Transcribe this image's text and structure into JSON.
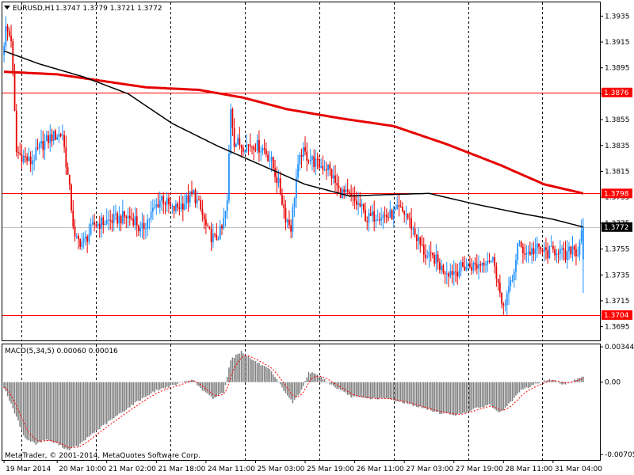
{
  "chart_data": {
    "type": "candlestick",
    "symbol_label": "EURUSD,H1",
    "ohlc_header": "1.3747 1.3779 1.3721 1.3772",
    "ohlc": {
      "open": 1.3747,
      "high": 1.3779,
      "low": 1.3721,
      "close": 1.3772
    },
    "price_axis": {
      "ylim": [
        1.3685,
        1.3945
      ],
      "ticks": [
        "1.3935",
        "1.3915",
        "1.3895",
        "1.3875",
        "1.3855",
        "1.3835",
        "1.3815",
        "1.3795",
        "1.3775",
        "1.3755",
        "1.3735",
        "1.3715",
        "1.3695"
      ]
    },
    "price_path": [
      [
        0,
        1.3905
      ],
      [
        2,
        1.3925
      ],
      [
        5,
        1.3918
      ],
      [
        8,
        1.383
      ],
      [
        12,
        1.3826
      ],
      [
        16,
        1.3822
      ],
      [
        22,
        1.3835
      ],
      [
        28,
        1.3842
      ],
      [
        34,
        1.3844
      ],
      [
        38,
        1.38
      ],
      [
        41,
        1.3762
      ],
      [
        46,
        1.376
      ],
      [
        52,
        1.3774
      ],
      [
        58,
        1.3776
      ],
      [
        64,
        1.3778
      ],
      [
        70,
        1.378
      ],
      [
        75,
        1.3778
      ],
      [
        78,
        1.3768
      ],
      [
        84,
        1.3782
      ],
      [
        90,
        1.3795
      ],
      [
        96,
        1.3785
      ],
      [
        102,
        1.379
      ],
      [
        108,
        1.3798
      ],
      [
        112,
        1.3785
      ],
      [
        116,
        1.3768
      ],
      [
        120,
        1.3762
      ],
      [
        124,
        1.377
      ],
      [
        127,
        1.379
      ],
      [
        129,
        1.3865
      ],
      [
        131,
        1.3838
      ],
      [
        136,
        1.3835
      ],
      [
        142,
        1.3836
      ],
      [
        148,
        1.3832
      ],
      [
        152,
        1.3822
      ],
      [
        156,
        1.3805
      ],
      [
        160,
        1.378
      ],
      [
        163,
        1.3772
      ],
      [
        166,
        1.381
      ],
      [
        169,
        1.383
      ],
      [
        173,
        1.3826
      ],
      [
        178,
        1.382
      ],
      [
        184,
        1.3818
      ],
      [
        190,
        1.38
      ],
      [
        196,
        1.3795
      ],
      [
        202,
        1.3788
      ],
      [
        206,
        1.3778
      ],
      [
        212,
        1.3782
      ],
      [
        218,
        1.378
      ],
      [
        224,
        1.3785
      ],
      [
        228,
        1.3782
      ],
      [
        232,
        1.377
      ],
      [
        236,
        1.3758
      ],
      [
        240,
        1.3748
      ],
      [
        244,
        1.3748
      ],
      [
        248,
        1.374
      ],
      [
        252,
        1.3738
      ],
      [
        256,
        1.3738
      ],
      [
        262,
        1.3742
      ],
      [
        268,
        1.3742
      ],
      [
        274,
        1.3748
      ],
      [
        278,
        1.3745
      ],
      [
        281,
        1.372
      ],
      [
        282,
        1.3708
      ],
      [
        285,
        1.372
      ],
      [
        288,
        1.373
      ],
      [
        291,
        1.3758
      ],
      [
        296,
        1.3752
      ],
      [
        302,
        1.3755
      ],
      [
        308,
        1.3752
      ],
      [
        314,
        1.3755
      ],
      [
        318,
        1.3748
      ],
      [
        322,
        1.3757
      ],
      [
        325,
        1.3752
      ],
      [
        327,
        1.3772
      ]
    ],
    "ma_fast": [
      [
        0,
        1.3908
      ],
      [
        20,
        1.3898
      ],
      [
        45,
        1.3888
      ],
      [
        70,
        1.3875
      ],
      [
        95,
        1.3852
      ],
      [
        120,
        1.3835
      ],
      [
        145,
        1.382
      ],
      [
        170,
        1.3805
      ],
      [
        195,
        1.3796
      ],
      [
        215,
        1.3797
      ],
      [
        240,
        1.3798
      ],
      [
        265,
        1.379
      ],
      [
        290,
        1.3783
      ],
      [
        310,
        1.3778
      ],
      [
        327,
        1.3772
      ]
    ],
    "ma_slow": [
      [
        0,
        1.3892
      ],
      [
        30,
        1.389
      ],
      [
        55,
        1.3885
      ],
      [
        80,
        1.388
      ],
      [
        110,
        1.3878
      ],
      [
        135,
        1.3872
      ],
      [
        160,
        1.3863
      ],
      [
        190,
        1.3856
      ],
      [
        220,
        1.385
      ],
      [
        250,
        1.3836
      ],
      [
        280,
        1.382
      ],
      [
        305,
        1.3805
      ],
      [
        327,
        1.3798
      ]
    ],
    "horizontal_levels": [
      {
        "value": 1.3876,
        "label": "1.3876",
        "color": "#ff0000"
      },
      {
        "value": 1.3798,
        "label": "1.3798",
        "color": "#ff0000"
      },
      {
        "value": 1.3704,
        "label": "1.3704",
        "color": "#ff0000"
      }
    ],
    "current_price": {
      "value": 1.3772,
      "label": "1.3772"
    },
    "x_axis": {
      "bar_count": 328,
      "ticks": [
        {
          "bar": 0,
          "label": "19 Mar 2014"
        },
        {
          "bar": 30,
          "label": "20 Mar 10:00"
        },
        {
          "bar": 58,
          "label": "21 Mar 02:00"
        },
        {
          "bar": 86,
          "label": "21 Mar 18:00"
        },
        {
          "bar": 114,
          "label": "24 Mar 11:00"
        },
        {
          "bar": 142,
          "label": "25 Mar 03:00"
        },
        {
          "bar": 170,
          "label": "25 Mar 19:00"
        },
        {
          "bar": 198,
          "label": "26 Mar 11:00"
        },
        {
          "bar": 226,
          "label": "27 Mar 03:00"
        },
        {
          "bar": 254,
          "label": "27 Mar 19:00"
        },
        {
          "bar": 282,
          "label": "28 Mar 11:00"
        },
        {
          "bar": 310,
          "label": "31 Mar 04:00"
        }
      ],
      "vertical_grid_bars": [
        10,
        52,
        94,
        136,
        178,
        220,
        262,
        304
      ]
    },
    "macd": {
      "title": "MACD(5,34,5) 0.00060 0.00016",
      "ylim": [
        -0.0075,
        0.0036
      ],
      "ticks": [
        "0.00344",
        "0.00",
        "-0.00705"
      ],
      "path": [
        [
          0,
          -0.0005
        ],
        [
          6,
          -0.003
        ],
        [
          12,
          -0.0055
        ],
        [
          18,
          -0.006
        ],
        [
          24,
          -0.0056
        ],
        [
          30,
          -0.006
        ],
        [
          36,
          -0.0066
        ],
        [
          42,
          -0.0062
        ],
        [
          50,
          -0.005
        ],
        [
          58,
          -0.004
        ],
        [
          66,
          -0.003
        ],
        [
          76,
          -0.0018
        ],
        [
          86,
          -0.0008
        ],
        [
          96,
          -0.0003
        ],
        [
          106,
          0.0003
        ],
        [
          112,
          -0.0008
        ],
        [
          118,
          -0.0016
        ],
        [
          124,
          -0.001
        ],
        [
          128,
          0.0022
        ],
        [
          134,
          0.003
        ],
        [
          140,
          0.0022
        ],
        [
          150,
          0.0012
        ],
        [
          158,
          -0.0008
        ],
        [
          163,
          -0.002
        ],
        [
          168,
          -0.0008
        ],
        [
          172,
          0.001
        ],
        [
          178,
          0.0006
        ],
        [
          186,
          -0.0004
        ],
        [
          196,
          -0.0014
        ],
        [
          206,
          -0.0016
        ],
        [
          216,
          -0.0016
        ],
        [
          226,
          -0.002
        ],
        [
          236,
          -0.0025
        ],
        [
          246,
          -0.003
        ],
        [
          256,
          -0.0032
        ],
        [
          266,
          -0.0026
        ],
        [
          274,
          -0.0022
        ],
        [
          280,
          -0.003
        ],
        [
          286,
          -0.002
        ],
        [
          292,
          -0.0008
        ],
        [
          300,
          -0.0002
        ],
        [
          308,
          0.0003
        ],
        [
          316,
          -0.0002
        ],
        [
          322,
          0.0002
        ],
        [
          327,
          0.0006
        ]
      ]
    }
  },
  "watermark": "MetaTrader, © 2001-2014, MetaQuotes Software Corp.",
  "colors": {
    "bull": "#1e90ff",
    "bear": "#e60000",
    "ma_fast": "#000000",
    "ma_slow": "#e60000",
    "hist": "#808080",
    "signal": "#ff0000",
    "grid": "#000000"
  }
}
